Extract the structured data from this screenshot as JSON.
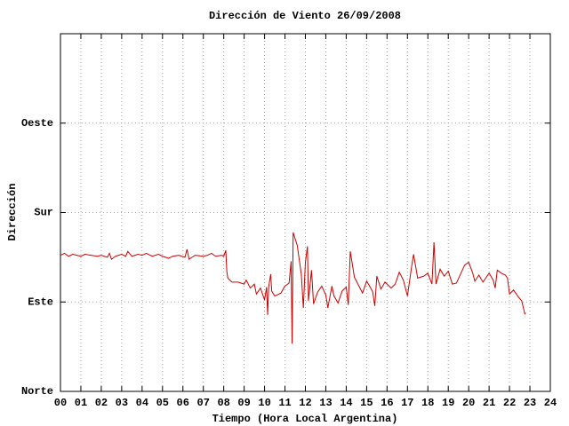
{
  "chart_data": {
    "type": "line",
    "title": "Dirección de Viento 26/09/2008",
    "x_label": "Tiempo (Hora Local Argentina)",
    "y_label": "Dirección",
    "color": "#cc0000",
    "grid": true,
    "xlim": [
      0,
      24
    ],
    "ylim": [
      0,
      360
    ],
    "xticks": [
      {
        "value": 0,
        "label": "00"
      },
      {
        "value": 1,
        "label": "01"
      },
      {
        "value": 2,
        "label": "02"
      },
      {
        "value": 3,
        "label": "03"
      },
      {
        "value": 4,
        "label": "04"
      },
      {
        "value": 5,
        "label": "05"
      },
      {
        "value": 6,
        "label": "06"
      },
      {
        "value": 7,
        "label": "07"
      },
      {
        "value": 8,
        "label": "08"
      },
      {
        "value": 9,
        "label": "09"
      },
      10,
      11,
      12,
      13,
      14,
      15,
      16,
      17,
      18,
      19,
      20,
      21,
      22,
      23,
      24
    ],
    "yticks": [
      {
        "value": 0,
        "label": "Norte"
      },
      {
        "value": 90,
        "label": "Este"
      },
      {
        "value": 180,
        "label": "Sur"
      },
      {
        "value": 270,
        "label": "Oeste"
      }
    ],
    "x": [
      0,
      0.2,
      0.4,
      0.6,
      0.8,
      1.0,
      1.2,
      1.5,
      1.8,
      2.0,
      2.3,
      2.4,
      2.5,
      2.7,
      3.0,
      3.2,
      3.3,
      3.5,
      3.8,
      4.0,
      4.2,
      4.5,
      4.8,
      5.0,
      5.3,
      5.5,
      5.8,
      6.1,
      6.2,
      6.3,
      6.6,
      7.0,
      7.2,
      7.4,
      7.6,
      7.9,
      8.0,
      8.1,
      8.15,
      8.2,
      8.4,
      8.7,
      9.0,
      9.1,
      9.3,
      9.5,
      9.6,
      9.8,
      10.0,
      10.1,
      10.15,
      10.2,
      10.3,
      10.35,
      10.5,
      10.8,
      11.0,
      11.2,
      11.3,
      11.35,
      11.4,
      11.6,
      11.8,
      11.9,
      12.0,
      12.1,
      12.15,
      12.3,
      12.4,
      12.6,
      12.8,
      13.0,
      13.1,
      13.3,
      13.4,
      13.6,
      13.8,
      14.0,
      14.1,
      14.2,
      14.4,
      14.6,
      14.8,
      15.0,
      15.2,
      15.3,
      15.4,
      15.5,
      15.7,
      15.9,
      16.2,
      16.4,
      16.6,
      16.8,
      17.0,
      17.2,
      17.3,
      17.5,
      17.8,
      18.0,
      18.2,
      18.3,
      18.4,
      18.6,
      18.8,
      19.0,
      19.2,
      19.4,
      19.6,
      19.8,
      20.0,
      20.2,
      20.3,
      20.5,
      20.7,
      21.0,
      21.2,
      21.3,
      21.4,
      21.6,
      21.8,
      21.9,
      22.0,
      22.2,
      22.4,
      22.6,
      22.75,
      22.8
    ],
    "values": [
      137,
      139,
      136,
      138,
      137,
      136,
      138,
      137,
      136,
      137,
      135,
      139,
      133,
      136,
      138,
      136,
      141,
      136,
      138,
      137,
      139,
      136,
      138,
      136,
      134,
      136,
      137,
      135,
      143,
      133,
      137,
      136,
      137,
      139,
      136,
      137,
      136,
      142,
      121,
      114,
      110,
      110,
      108,
      112,
      104,
      108,
      98,
      104,
      92,
      105,
      77,
      105,
      118,
      101,
      96,
      99,
      106,
      109,
      131,
      48,
      160,
      147,
      118,
      84,
      130,
      146,
      91,
      122,
      88,
      100,
      106,
      97,
      84,
      106,
      96,
      89,
      101,
      105,
      87,
      141,
      115,
      107,
      99,
      111,
      104,
      100,
      86,
      116,
      103,
      110,
      104,
      108,
      120,
      112,
      96,
      125,
      138,
      114,
      116,
      119,
      108,
      150,
      108,
      123,
      116,
      121,
      108,
      109,
      118,
      127,
      130,
      119,
      111,
      117,
      110,
      119,
      112,
      104,
      122,
      119,
      117,
      114,
      98,
      102,
      96,
      91,
      78,
      79
    ]
  }
}
